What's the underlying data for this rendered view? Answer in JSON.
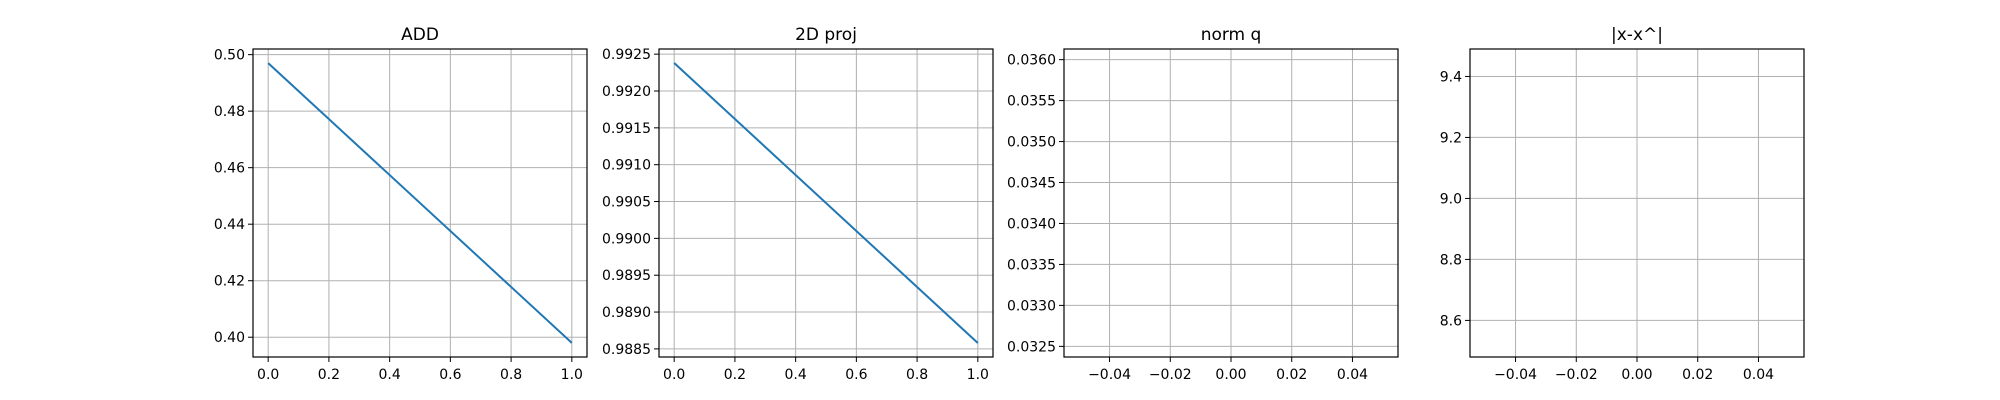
{
  "chart_data": [
    {
      "type": "line",
      "title": "ADD",
      "xlabel": "",
      "ylabel": "",
      "grid": true,
      "x": [
        0.0,
        1.0
      ],
      "series": [
        {
          "values": [
            0.497,
            0.398
          ]
        }
      ],
      "xlim": [
        -0.05,
        1.05
      ],
      "ylim": [
        0.393,
        0.502
      ],
      "x_ticks": [
        0.0,
        0.2,
        0.4,
        0.6,
        0.8,
        1.0
      ],
      "x_tick_labels": [
        "0.0",
        "0.2",
        "0.4",
        "0.6",
        "0.8",
        "1.0"
      ],
      "y_ticks": [
        0.4,
        0.42,
        0.44,
        0.46,
        0.48,
        0.5
      ],
      "y_tick_labels": [
        "0.40",
        "0.42",
        "0.44",
        "0.46",
        "0.48",
        "0.50"
      ],
      "line_color": "#1f77b4"
    },
    {
      "type": "line",
      "title": "2D proj",
      "xlabel": "",
      "ylabel": "",
      "grid": true,
      "x": [
        0.0,
        1.0
      ],
      "series": [
        {
          "values": [
            0.99238,
            0.98858
          ]
        }
      ],
      "xlim": [
        -0.05,
        1.05
      ],
      "ylim": [
        0.98839,
        0.99257
      ],
      "x_ticks": [
        0.0,
        0.2,
        0.4,
        0.6,
        0.8,
        1.0
      ],
      "x_tick_labels": [
        "0.0",
        "0.2",
        "0.4",
        "0.6",
        "0.8",
        "1.0"
      ],
      "y_ticks": [
        0.9885,
        0.989,
        0.9895,
        0.99,
        0.9905,
        0.991,
        0.9915,
        0.992,
        0.9925
      ],
      "y_tick_labels": [
        "0.9885",
        "0.9890",
        "0.9895",
        "0.9900",
        "0.9905",
        "0.9910",
        "0.9915",
        "0.9920",
        "0.9925"
      ],
      "line_color": "#1f77b4"
    },
    {
      "type": "line",
      "title": "norm q",
      "xlabel": "",
      "ylabel": "",
      "grid": true,
      "x": [],
      "series": [],
      "xlim": [
        -0.055,
        0.055
      ],
      "ylim": [
        0.03237,
        0.03613
      ],
      "x_ticks": [
        -0.04,
        -0.02,
        0.0,
        0.02,
        0.04
      ],
      "x_tick_labels": [
        "−0.04",
        "−0.02",
        "0.00",
        "0.02",
        "0.04"
      ],
      "y_ticks": [
        0.0325,
        0.033,
        0.0335,
        0.034,
        0.0345,
        0.035,
        0.0355,
        0.036
      ],
      "y_tick_labels": [
        "0.0325",
        "0.0330",
        "0.0335",
        "0.0340",
        "0.0345",
        "0.0350",
        "0.0355",
        "0.0360"
      ],
      "line_color": "#1f77b4"
    },
    {
      "type": "line",
      "title": "|x-x^|",
      "xlabel": "",
      "ylabel": "",
      "grid": true,
      "x": [],
      "series": [],
      "xlim": [
        -0.055,
        0.055
      ],
      "ylim": [
        8.48,
        9.49
      ],
      "x_ticks": [
        -0.04,
        -0.02,
        0.0,
        0.02,
        0.04
      ],
      "x_tick_labels": [
        "−0.04",
        "−0.02",
        "0.00",
        "0.02",
        "0.04"
      ],
      "y_ticks": [
        8.6,
        8.8,
        9.0,
        9.2,
        9.4
      ],
      "y_tick_labels": [
        "8.6",
        "8.8",
        "9.0",
        "9.2",
        "9.4"
      ],
      "line_color": "#1f77b4"
    }
  ]
}
